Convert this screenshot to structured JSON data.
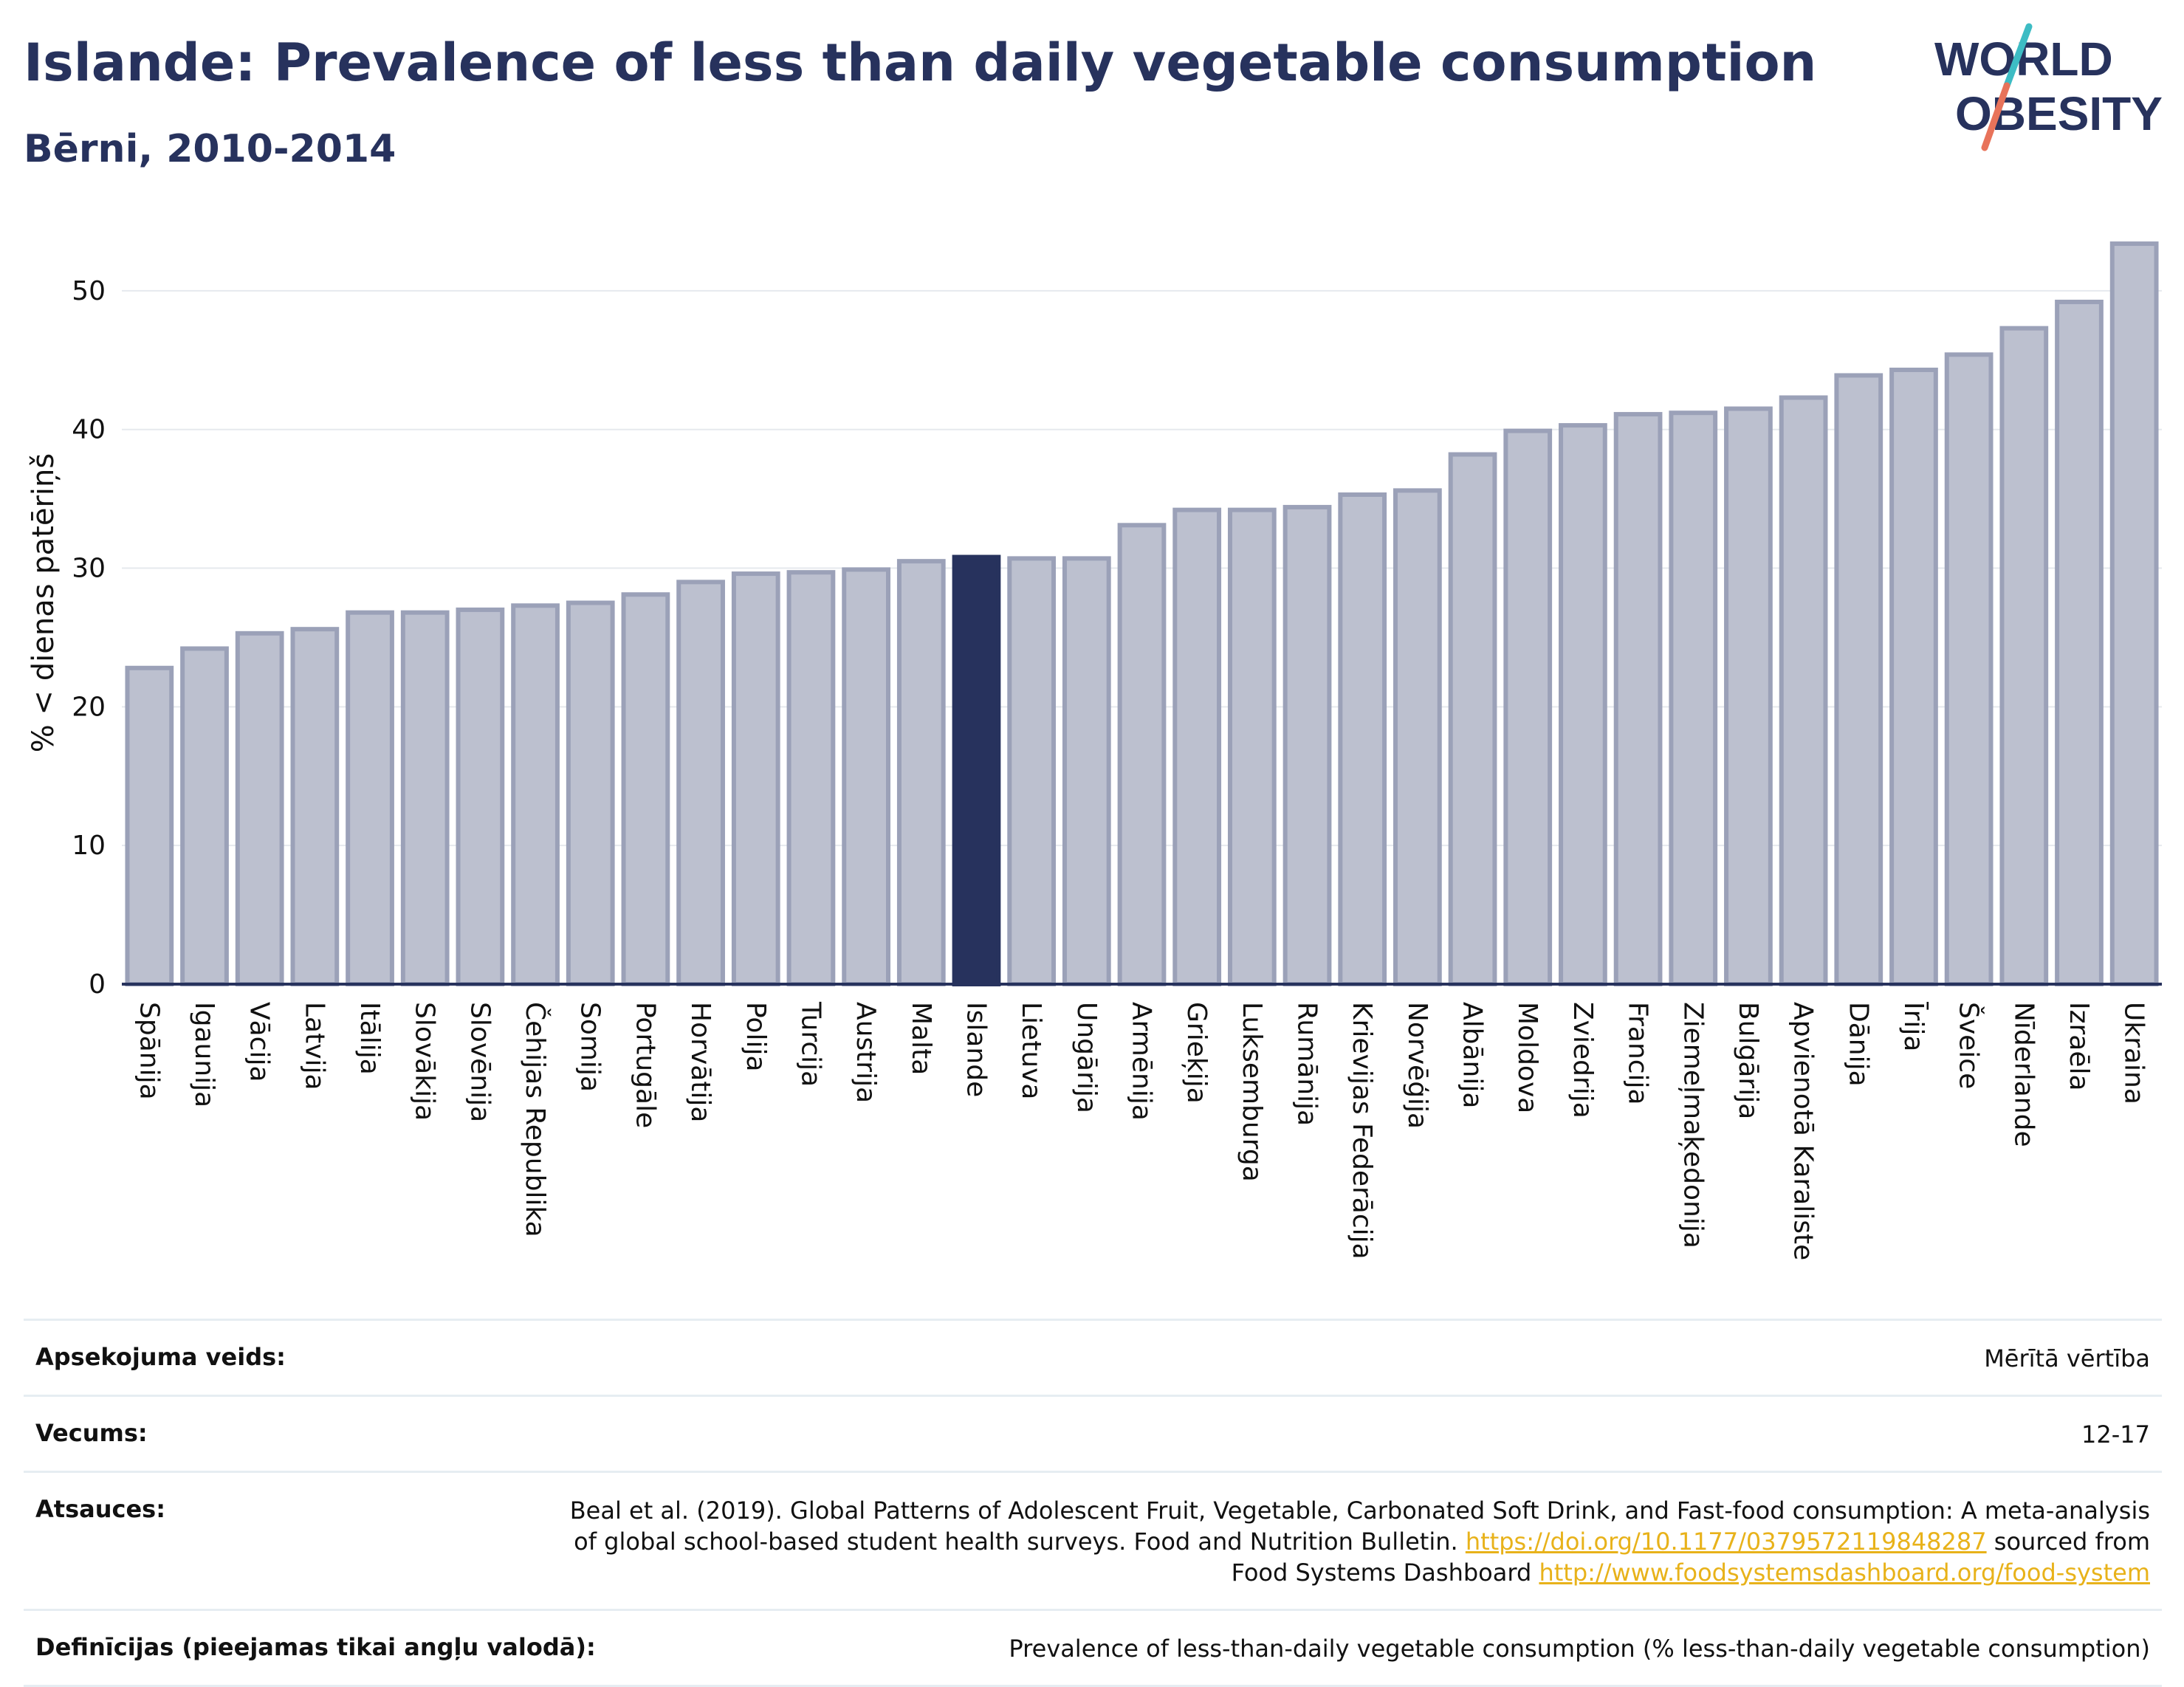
{
  "header": {
    "title": "Islande: Prevalence of less than daily vegetable consumption",
    "subtitle": "Bērni, 2010-2014"
  },
  "logo": {
    "line1": "WORLD",
    "line2": "OBESITY",
    "colors": {
      "text": "#27325d",
      "slash_top": "#3dbcc4",
      "slash_bottom": "#e8735a"
    }
  },
  "colors": {
    "bar": "#bcc0cf",
    "bar_border": "#9ba1b8",
    "highlight": "#27325d",
    "grid": "#e6e9ee"
  },
  "chart_data": {
    "type": "bar",
    "ylabel": "% < dienas patēriņš",
    "ylim": [
      0,
      55
    ],
    "yticks": [
      0,
      10,
      20,
      30,
      40,
      50
    ],
    "grid": true,
    "highlight": "Islande",
    "categories": [
      "Spānija",
      "Igaunija",
      "Vācija",
      "Latvija",
      "Itālija",
      "Slovākija",
      "Slovēnija",
      "Čehijas Republika",
      "Somija",
      "Portugāle",
      "Horvātija",
      "Polija",
      "Turcija",
      "Austrija",
      "Malta",
      "Islande",
      "Lietuva",
      "Ungārija",
      "Armēnija",
      "Grieķija",
      "Luksemburga",
      "Rumānija",
      "Krievijas Federācija",
      "Norvēģija",
      "Albānija",
      "Moldova",
      "Zviedrija",
      "Francija",
      "Ziemeļmaķedonija",
      "Bulgārija",
      "Apvienotā Karaliste",
      "Dānija",
      "Īrija",
      "Šveice",
      "Nīderlande",
      "Izraēla",
      "Ukraina"
    ],
    "values": [
      22.8,
      24.2,
      25.3,
      25.6,
      26.8,
      26.8,
      27.0,
      27.3,
      27.5,
      28.1,
      29.0,
      29.6,
      29.7,
      29.9,
      30.5,
      30.8,
      30.7,
      30.7,
      33.1,
      34.2,
      34.2,
      34.4,
      35.3,
      35.6,
      38.2,
      39.9,
      40.3,
      41.1,
      41.2,
      41.5,
      42.3,
      43.9,
      44.3,
      45.4,
      47.3,
      49.2,
      53.4
    ]
  },
  "meta": [
    {
      "key": "Apsekojuma veids:",
      "value": "Mērītā vērtība"
    },
    {
      "key": "Vecums:",
      "value": "12-17"
    },
    {
      "key": "Atsauces:",
      "text1": "Beal et al. (2019). Global Patterns of Adolescent Fruit, Vegetable, Carbonated Soft Drink, and Fast-food consumption: A meta-analysis of global school-based student health surveys. Food and Nutrition Bulletin. ",
      "link1": "https://doi.org/10.1177/0379572119848287",
      "text2": " sourced from Food Systems Dashboard ",
      "link2": "http://www.foodsystemsdashboard.org/food-system"
    },
    {
      "key": "Definīcijas (pieejamas tikai angļu valodā):",
      "value": "Prevalence of less-than-daily vegetable consumption (% less-than-daily vegetable consumption)"
    }
  ]
}
